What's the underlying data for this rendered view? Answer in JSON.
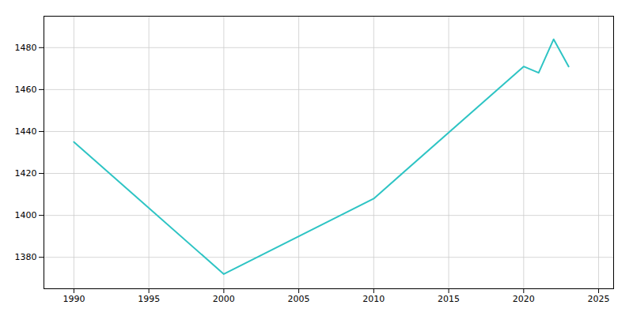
{
  "chart_data": {
    "type": "line",
    "x": [
      1990,
      2000,
      2010,
      2020,
      2021,
      2022,
      2023
    ],
    "values": [
      1435,
      1372,
      1408,
      1471,
      1468,
      1484,
      1471
    ],
    "color": "#2EC4C4",
    "xlim": [
      1988,
      2026
    ],
    "ylim": [
      1365,
      1495
    ],
    "xticks": [
      1990,
      1995,
      2000,
      2005,
      2010,
      2015,
      2020,
      2025
    ],
    "yticks": [
      1380,
      1400,
      1420,
      1440,
      1460,
      1480
    ],
    "grid": true
  }
}
